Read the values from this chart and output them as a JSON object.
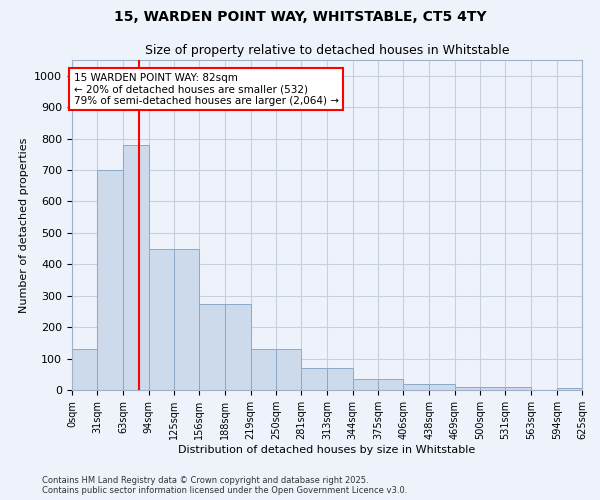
{
  "title_line1": "15, WARDEN POINT WAY, WHITSTABLE, CT5 4TY",
  "title_line2": "Size of property relative to detached houses in Whitstable",
  "xlabel": "Distribution of detached houses by size in Whitstable",
  "ylabel": "Number of detached properties",
  "bar_color": "#ccdaeb",
  "bar_edge_color": "#8baac8",
  "grid_color": "#c8d0e0",
  "background_color": "#eef2fb",
  "red_line_x": 82,
  "annotation_title": "15 WARDEN POINT WAY: 82sqm",
  "annotation_line1": "← 20% of detached houses are smaller (532)",
  "annotation_line2": "79% of semi-detached houses are larger (2,064) →",
  "bin_labels": [
    "0sqm",
    "31sqm",
    "63sqm",
    "94sqm",
    "125sqm",
    "156sqm",
    "188sqm",
    "219sqm",
    "250sqm",
    "281sqm",
    "313sqm",
    "344sqm",
    "375sqm",
    "406sqm",
    "438sqm",
    "469sqm",
    "500sqm",
    "531sqm",
    "563sqm",
    "594sqm",
    "625sqm"
  ],
  "bin_edges": [
    0,
    31,
    63,
    94,
    125,
    156,
    188,
    219,
    250,
    281,
    313,
    344,
    375,
    406,
    438,
    469,
    500,
    531,
    563,
    594,
    625
  ],
  "bar_heights": [
    130,
    700,
    780,
    450,
    450,
    275,
    275,
    130,
    130,
    70,
    70,
    35,
    35,
    20,
    20,
    10,
    10,
    10,
    0,
    5,
    0
  ],
  "ylim": [
    0,
    1050
  ],
  "yticks": [
    0,
    100,
    200,
    300,
    400,
    500,
    600,
    700,
    800,
    900,
    1000
  ],
  "footer_line1": "Contains HM Land Registry data © Crown copyright and database right 2025.",
  "footer_line2": "Contains public sector information licensed under the Open Government Licence v3.0."
}
